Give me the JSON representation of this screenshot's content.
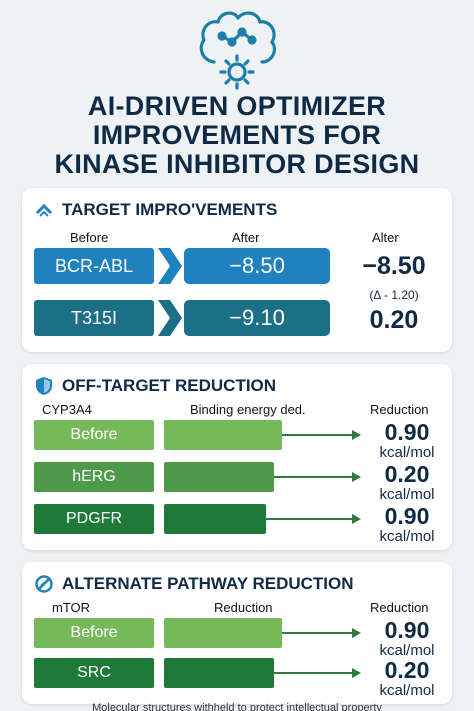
{
  "title_lines": [
    "AI-DRIVEN OPTIMIZER",
    "IMPROVEMENTS FOR",
    "KINASE INHIBITOR DESIGN"
  ],
  "target": {
    "heading": "TARGET IMPRO'VEMENTS",
    "col_before": "Before",
    "col_after": "After",
    "col_alter": "Alter",
    "rows": [
      {
        "label": "BCR-ABL",
        "after": "−8.50",
        "side_value": "−8.50",
        "side_note": "(Δ - 1.20)"
      },
      {
        "label": "T315I",
        "after": "−9.10",
        "side_value": "0.20"
      }
    ]
  },
  "offtarget": {
    "heading": "OFF-TARGET REDUCTION",
    "col_1": "CYP3A4",
    "col_2": "Binding energy ded.",
    "col_3": "Reduction",
    "rows": [
      {
        "label": "Before",
        "value": "0.90",
        "unit": "kcal/mol"
      },
      {
        "label": "hERG",
        "value": "0.20",
        "unit": "kcal/mol"
      },
      {
        "label": "PDGFR",
        "value": "0.90",
        "unit": "kcal/mol"
      }
    ]
  },
  "pathway": {
    "heading": "ALTERNATE PATHWAY REDUCTION",
    "col_1": "mTOR",
    "col_2": "Reduction",
    "col_3": "Reduction",
    "rows": [
      {
        "label": "Before",
        "value": "0.90",
        "unit": "kcal/mol"
      },
      {
        "label": "SRC",
        "value": "0.20",
        "unit": "kcal/mol"
      }
    ]
  },
  "footer": "Molecular structures withheld to protect intellectual property",
  "colors": {
    "navy": "#0f2a45",
    "blue": "#1d82bf",
    "teal": "#1b6f86",
    "green_light": "#76b95a",
    "green_mid": "#4d9a4a",
    "green_dark": "#1f7a3a"
  }
}
